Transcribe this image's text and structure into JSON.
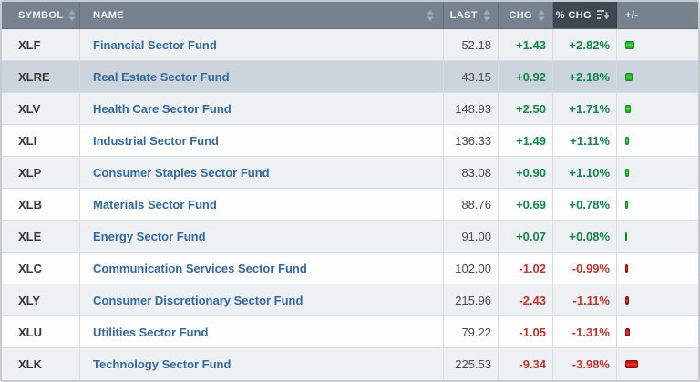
{
  "table": {
    "columns": [
      {
        "key": "symbol",
        "label": "SYMBOL",
        "sortable": true,
        "sorted": null
      },
      {
        "key": "name",
        "label": "NAME",
        "sortable": true,
        "sorted": null
      },
      {
        "key": "last",
        "label": "LAST",
        "sortable": true,
        "sorted": null
      },
      {
        "key": "chg",
        "label": "CHG",
        "sortable": true,
        "sorted": null
      },
      {
        "key": "pchg",
        "label": "% CHG",
        "sortable": true,
        "sorted": "desc"
      },
      {
        "key": "bar",
        "label": "+/-",
        "sortable": false,
        "sorted": null
      }
    ],
    "rows": [
      {
        "symbol": "XLF",
        "name": "Financial Sector Fund",
        "last": "52.18",
        "chg": "+1.43",
        "pchg": "+2.82%",
        "direction": "up",
        "highlighted": false
      },
      {
        "symbol": "XLRE",
        "name": "Real Estate Sector Fund",
        "last": "43.15",
        "chg": "+0.92",
        "pchg": "+2.18%",
        "direction": "up",
        "highlighted": true
      },
      {
        "symbol": "XLV",
        "name": "Health Care Sector Fund",
        "last": "148.93",
        "chg": "+2.50",
        "pchg": "+1.71%",
        "direction": "up",
        "highlighted": false
      },
      {
        "symbol": "XLI",
        "name": "Industrial Sector Fund",
        "last": "136.33",
        "chg": "+1.49",
        "pchg": "+1.11%",
        "direction": "up",
        "highlighted": false
      },
      {
        "symbol": "XLP",
        "name": "Consumer Staples Sector Fund",
        "last": "83.08",
        "chg": "+0.90",
        "pchg": "+1.10%",
        "direction": "up",
        "highlighted": false
      },
      {
        "symbol": "XLB",
        "name": "Materials Sector Fund",
        "last": "88.76",
        "chg": "+0.69",
        "pchg": "+0.78%",
        "direction": "up",
        "highlighted": false
      },
      {
        "symbol": "XLE",
        "name": "Energy Sector Fund",
        "last": "91.00",
        "chg": "+0.07",
        "pchg": "+0.08%",
        "direction": "up",
        "highlighted": false
      },
      {
        "symbol": "XLC",
        "name": "Communication Services Sector Fund",
        "last": "102.00",
        "chg": "-1.02",
        "pchg": "-0.99%",
        "direction": "down",
        "highlighted": false
      },
      {
        "symbol": "XLY",
        "name": "Consumer Discretionary Sector Fund",
        "last": "215.96",
        "chg": "-2.43",
        "pchg": "-1.11%",
        "direction": "down",
        "highlighted": false
      },
      {
        "symbol": "XLU",
        "name": "Utilities Sector Fund",
        "last": "79.22",
        "chg": "-1.05",
        "pchg": "-1.31%",
        "direction": "down",
        "highlighted": false
      },
      {
        "symbol": "XLK",
        "name": "Technology Sector Fund",
        "last": "225.53",
        "chg": "-9.34",
        "pchg": "-3.98%",
        "direction": "down",
        "highlighted": false
      }
    ]
  },
  "colors": {
    "header_bg": "#76838e",
    "header_active_bg": "#3e4851",
    "positive_text": "#13854b",
    "negative_text": "#c0332d",
    "positive_bar": "#35cf37",
    "negative_bar": "#db2317",
    "name_link": "#35689b",
    "row_tint": "#edf1f4",
    "row_highlight": "#ccd5dd"
  }
}
